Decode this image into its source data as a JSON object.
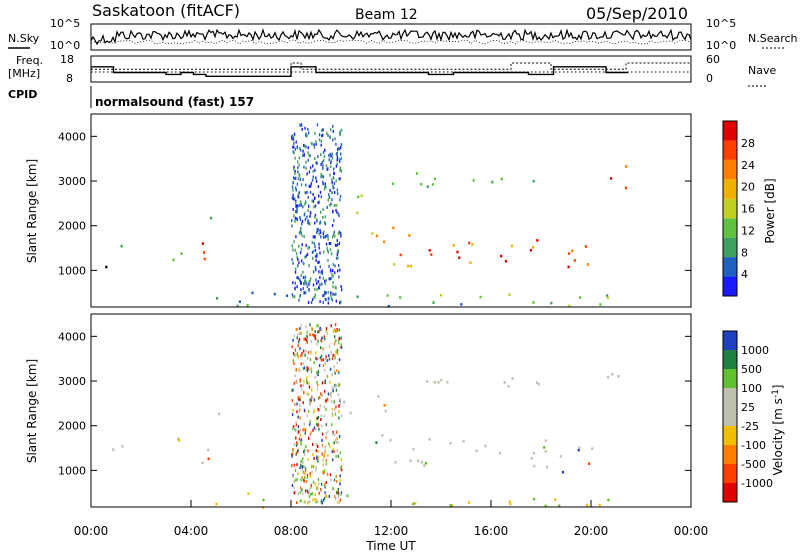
{
  "header": {
    "station": "Saskatoon (fitACF)",
    "beam": "Beam 12",
    "date": "05/Sep/2010"
  },
  "left_labels": {
    "nsky": "N.Sky",
    "freq_l1": "Freq.",
    "freq_l2": "[MHz]",
    "cpid": "CPID"
  },
  "right_labels": {
    "nsearch": "N.Search",
    "nave": "Nave"
  },
  "cpid_text": "normalsound (fast) 157",
  "colors": {
    "power": [
      "#1a1aff",
      "#2060c0",
      "#40a060",
      "#60c040",
      "#c0d020",
      "#f0b000",
      "#ff8000",
      "#ff4000",
      "#e00000"
    ],
    "velocity": [
      "#e00000",
      "#ff4000",
      "#ff8000",
      "#f0c000",
      "#c0c0b0",
      "#c0c0b0",
      "#60c030",
      "#208040",
      "#2040c0"
    ]
  },
  "chart_data": [
    {
      "type": "line",
      "name": "noise",
      "ylabels": [
        "10^5",
        "10^0"
      ],
      "right_ylabels": [
        "10^5",
        "10^0"
      ],
      "series": [
        {
          "name": "N.Sky",
          "values": []
        },
        {
          "name": "N.Search",
          "values": []
        }
      ]
    },
    {
      "type": "line",
      "name": "freq_nave",
      "left_ticks": [
        "18",
        "8"
      ],
      "right_ticks": [
        "60",
        "0"
      ],
      "series": [
        {
          "name": "Freq",
          "x": [
            0,
            0.9,
            0.9,
            3.0,
            3.0,
            3.6,
            3.6,
            4.1,
            4.1,
            4.6,
            4.6,
            8.0,
            8.0,
            9.0,
            9.0,
            10.0,
            10.0,
            13.5,
            13.5,
            14.5,
            14.5,
            17.5,
            17.5,
            18.5,
            18.5,
            20.6,
            20.6,
            21.5
          ],
          "values": [
            16,
            16,
            13,
            13,
            12,
            12,
            13,
            13,
            12,
            12,
            11,
            11,
            16,
            16,
            13,
            13,
            13,
            13,
            12,
            12,
            13,
            13,
            12,
            12,
            16,
            16,
            13,
            13
          ]
        },
        {
          "name": "Nave",
          "x": [
            0,
            8,
            8,
            8.4,
            8.4,
            16.8,
            16.8,
            18.4,
            18.4,
            21.4,
            21.4,
            24
          ],
          "values": [
            40,
            40,
            60,
            60,
            40,
            40,
            60,
            60,
            40,
            40,
            60,
            60
          ]
        }
      ]
    },
    {
      "type": "heatmap",
      "name": "power",
      "ylabel": "Slant Range [km]",
      "yticks": [
        "4000",
        "3000",
        "2000",
        "1000"
      ],
      "ylim": [
        180,
        4500
      ],
      "colorbar_label": "Power [dB]",
      "colorbar_ticks": [
        "28",
        "24",
        "20",
        "16",
        "12",
        "8",
        "4"
      ]
    },
    {
      "type": "heatmap",
      "name": "velocity",
      "ylabel": "Slant Range [km]",
      "yticks": [
        "4000",
        "3000",
        "2000",
        "1000"
      ],
      "ylim": [
        180,
        4500
      ],
      "colorbar_label": "Velocity [m s^-1]",
      "colorbar_ticks": [
        "1000",
        "500",
        "100",
        "25",
        "-25",
        "-100",
        "-500",
        "-1000"
      ],
      "xlabel": "Time UT",
      "xticks": [
        "00:00",
        "04:00",
        "08:00",
        "12:00",
        "16:00",
        "20:00",
        "00:00"
      ],
      "xlim": [
        0,
        24
      ]
    }
  ]
}
